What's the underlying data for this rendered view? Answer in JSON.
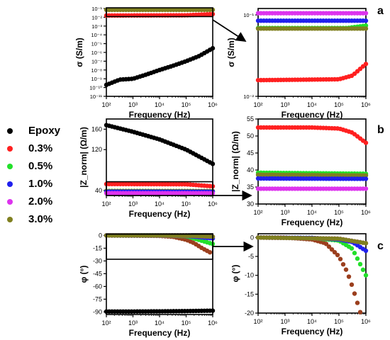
{
  "legend": [
    {
      "label": "Epoxy",
      "color": "#000000"
    },
    {
      "label": "0.3%",
      "color": "#ff2020"
    },
    {
      "label": "0.5%",
      "color": "#22e02a"
    },
    {
      "label": "1.0%",
      "color": "#2020ee"
    },
    {
      "label": "2.0%",
      "color": "#dd33ee"
    },
    {
      "label": "3.0%",
      "color": "#808020"
    }
  ],
  "panel_letters": [
    "a",
    "b",
    "c"
  ],
  "chart_data": [
    {
      "id": "a-left",
      "type": "scatter",
      "panel": "a",
      "xlabel": "Frequency (Hz)",
      "ylabel": "σ (S/m)",
      "xscale": "log",
      "yscale": "log",
      "xlim": [
        100,
        1000000
      ],
      "ylim": [
        1e-11,
        0.1
      ],
      "xticks": [
        "10²",
        "10³",
        "10⁴",
        "10⁵",
        "10⁶"
      ],
      "yticks": [
        "10⁻¹¹",
        "10⁻¹⁰",
        "10⁻⁹",
        "10⁻⁸",
        "10⁻⁷",
        "10⁻⁶",
        "10⁻⁵",
        "10⁻⁴",
        "10⁻³",
        "10⁻²",
        "10⁻¹"
      ],
      "series": [
        {
          "name": "Epoxy",
          "color": "#000000",
          "x": [
            100,
            316,
            1000,
            3162,
            10000,
            31623,
            100000,
            316228,
            1000000
          ],
          "y": [
            2e-10,
            8e-10,
            1e-09,
            3e-09,
            1e-08,
            3e-08,
            1e-07,
            4e-07,
            3e-06
          ]
        },
        {
          "name": "3.0%",
          "color": "#808020",
          "x": [
            100,
            1000000
          ],
          "y": [
            0.07,
            0.07
          ]
        },
        {
          "name": "0.3%",
          "color": "#ff2020",
          "x": [
            100,
            100000,
            1000000
          ],
          "y": [
            0.016,
            0.017,
            0.023
          ]
        }
      ],
      "inset_box": {
        "x": [
          100,
          1000000
        ],
        "y": [
          0.012,
          0.12
        ]
      }
    },
    {
      "id": "a-right",
      "type": "scatter",
      "panel": "a",
      "xlabel": "Frequency (Hz)",
      "ylabel": "σ (S/m)",
      "xscale": "log",
      "yscale": "log",
      "xlim": [
        100,
        1000000
      ],
      "ylim": [
        0.01,
        0.12
      ],
      "xticks": [
        "10²",
        "10³",
        "10⁴",
        "10⁵",
        "10⁶"
      ],
      "yticks": [
        "10⁻²",
        "10⁻¹"
      ],
      "series": [
        {
          "name": "2.0%",
          "color": "#dd33ee",
          "x": [
            100,
            1000000
          ],
          "y": [
            0.105,
            0.105
          ]
        },
        {
          "name": "1.0%",
          "color": "#2020ee",
          "x": [
            100,
            1000000
          ],
          "y": [
            0.085,
            0.085
          ]
        },
        {
          "name": "0.5%",
          "color": "#22e02a",
          "x": [
            100,
            200000,
            1000000
          ],
          "y": [
            0.069,
            0.069,
            0.074
          ]
        },
        {
          "name": "3.0%",
          "color": "#808020",
          "x": [
            100,
            1000000
          ],
          "y": [
            0.068,
            0.068
          ]
        },
        {
          "name": "0.3%",
          "color": "#ff2020",
          "x": [
            100,
            100000,
            316228,
            1000000
          ],
          "y": [
            0.0158,
            0.0162,
            0.018,
            0.025
          ]
        }
      ]
    },
    {
      "id": "b-left",
      "type": "scatter",
      "panel": "b",
      "xlabel": "Frequency (Hz)",
      "ylabel": "|Z_norm| (Ω/m)",
      "xscale": "log",
      "yscale": "linear",
      "xlim": [
        100,
        1000000
      ],
      "ylim": [
        30,
        180
      ],
      "xticks": [
        "10²",
        "10³",
        "10⁴",
        "10⁵",
        "10⁶"
      ],
      "yticks": [
        "40",
        "120",
        "160"
      ],
      "series": [
        {
          "name": "Epoxy",
          "color": "#000000",
          "x": [
            100,
            1000,
            10000,
            100000,
            1000000
          ],
          "y": [
            168,
            155,
            140,
            120,
            92
          ]
        },
        {
          "name": "0.3%",
          "color": "#ff2020",
          "x": [
            100,
            100000,
            1000000
          ],
          "y": [
            52.5,
            52,
            48
          ]
        },
        {
          "name": "0.5%",
          "color": "#22e02a",
          "x": [
            100,
            1000000
          ],
          "y": [
            39,
            38.6
          ]
        },
        {
          "name": "3.0%",
          "color": "#808020",
          "x": [
            100,
            1000000
          ],
          "y": [
            38.6,
            38.5
          ]
        },
        {
          "name": "1.0%",
          "color": "#2020ee",
          "x": [
            100,
            1000000
          ],
          "y": [
            37.5,
            37.4
          ]
        },
        {
          "name": "2.0%",
          "color": "#dd33ee",
          "x": [
            100,
            1000000
          ],
          "y": [
            34.5,
            34.5
          ]
        }
      ],
      "inset_box": {
        "x": [
          100,
          1000000
        ],
        "y": [
          30,
          57
        ]
      }
    },
    {
      "id": "b-right",
      "type": "scatter",
      "panel": "b",
      "xlabel": "Frequency (Hz)",
      "ylabel": "|Z_norm| (Ω/m)",
      "xscale": "log",
      "yscale": "linear",
      "xlim": [
        100,
        1000000
      ],
      "ylim": [
        30,
        55
      ],
      "xticks": [
        "10²",
        "10³",
        "10⁴",
        "10⁵",
        "10⁶"
      ],
      "yticks": [
        "30",
        "35",
        "40",
        "45",
        "50",
        "55"
      ],
      "series": [
        {
          "name": "0.3%",
          "color": "#ff2020",
          "x": [
            100,
            10000,
            100000,
            316228,
            1000000
          ],
          "y": [
            52.5,
            52.5,
            52.2,
            51,
            48
          ]
        },
        {
          "name": "0.5%",
          "color": "#22e02a",
          "x": [
            100,
            1000000
          ],
          "y": [
            39.2,
            38.9
          ]
        },
        {
          "name": "3.0%",
          "color": "#808020",
          "x": [
            100,
            1000000
          ],
          "y": [
            38.6,
            38.4
          ]
        },
        {
          "name": "1.0%",
          "color": "#2020ee",
          "x": [
            100,
            1000000
          ],
          "y": [
            37.5,
            37.4
          ]
        },
        {
          "name": "2.0%",
          "color": "#dd33ee",
          "x": [
            100,
            1000000
          ],
          "y": [
            34.5,
            34.5
          ]
        }
      ]
    },
    {
      "id": "c-left",
      "type": "scatter",
      "panel": "c",
      "xlabel": "Frequency (Hz)",
      "ylabel": "φ (°)",
      "xscale": "log",
      "yscale": "linear",
      "xlim": [
        100,
        1000000
      ],
      "ylim": [
        -93,
        2
      ],
      "xticks": [
        "10²",
        "10³",
        "10⁴",
        "10⁵",
        "10⁶"
      ],
      "yticks": [
        "0",
        "-15",
        "-30",
        "-45",
        "-60",
        "-75",
        "-90"
      ],
      "series": [
        {
          "name": "Epoxy",
          "color": "#000000",
          "x": [
            100,
            1000,
            10000,
            100000,
            1000000
          ],
          "y": [
            -89.5,
            -89.5,
            -89.3,
            -89,
            -88.5
          ]
        },
        {
          "name": "0.3%",
          "color": "#9b3f1e",
          "x": [
            100,
            1000,
            10000,
            31623,
            100000,
            200000,
            400000,
            800000
          ],
          "y": [
            0,
            0,
            -0.5,
            -1.5,
            -5,
            -9,
            -15,
            -20
          ]
        },
        {
          "name": "0.5%",
          "color": "#22e02a",
          "x": [
            100,
            10000,
            100000,
            1000000
          ],
          "y": [
            0,
            -0.1,
            -0.8,
            -10
          ]
        },
        {
          "name": "1.0%",
          "color": "#2020ee",
          "x": [
            100,
            100000,
            1000000
          ],
          "y": [
            0,
            -0.5,
            -3.5
          ]
        },
        {
          "name": "2.0%",
          "color": "#dd33ee",
          "x": [
            100,
            100000,
            1000000
          ],
          "y": [
            0,
            -0.3,
            -1.5
          ]
        },
        {
          "name": "3.0%",
          "color": "#808020",
          "x": [
            100,
            100000,
            1000000
          ],
          "y": [
            0,
            -0.3,
            -1.5
          ]
        }
      ],
      "inset_box": {
        "x": [
          100,
          1000000
        ],
        "y": [
          -28,
          1.5
        ]
      }
    },
    {
      "id": "c-right",
      "type": "scatter",
      "panel": "c",
      "xlabel": "Frequency (Hz)",
      "ylabel": "φ (°)",
      "xscale": "log",
      "yscale": "linear",
      "xlim": [
        100,
        1000000
      ],
      "ylim": [
        -20,
        1
      ],
      "xticks": [
        "10²",
        "10³",
        "10⁴",
        "10⁵",
        "10⁶"
      ],
      "yticks": [
        "0",
        "-5",
        "-10",
        "-15",
        "-20"
      ],
      "series": [
        {
          "name": "0.3%",
          "color": "#9b3f1e",
          "x": [
            100,
            1000,
            10000,
            31623,
            100000,
            200000,
            316228,
            446684,
            631000
          ],
          "y": [
            0,
            0,
            -0.5,
            -1.5,
            -5,
            -9,
            -13,
            -16.5,
            -20
          ]
        },
        {
          "name": "0.5%",
          "color": "#22e02a",
          "x": [
            100,
            10000,
            100000,
            316228,
            1000000
          ],
          "y": [
            0,
            -0.1,
            -0.8,
            -3,
            -10
          ]
        },
        {
          "name": "1.0%",
          "color": "#2020ee",
          "x": [
            100,
            10000,
            100000,
            316228,
            1000000
          ],
          "y": [
            0,
            -0.1,
            -0.5,
            -1.2,
            -3.5
          ]
        },
        {
          "name": "2.0%",
          "color": "#dd33ee",
          "x": [
            100,
            100000,
            1000000
          ],
          "y": [
            0,
            -0.3,
            -1.5
          ]
        },
        {
          "name": "3.0%",
          "color": "#808020",
          "x": [
            100,
            100000,
            1000000
          ],
          "y": [
            0,
            -0.3,
            -1.5
          ]
        }
      ]
    }
  ]
}
